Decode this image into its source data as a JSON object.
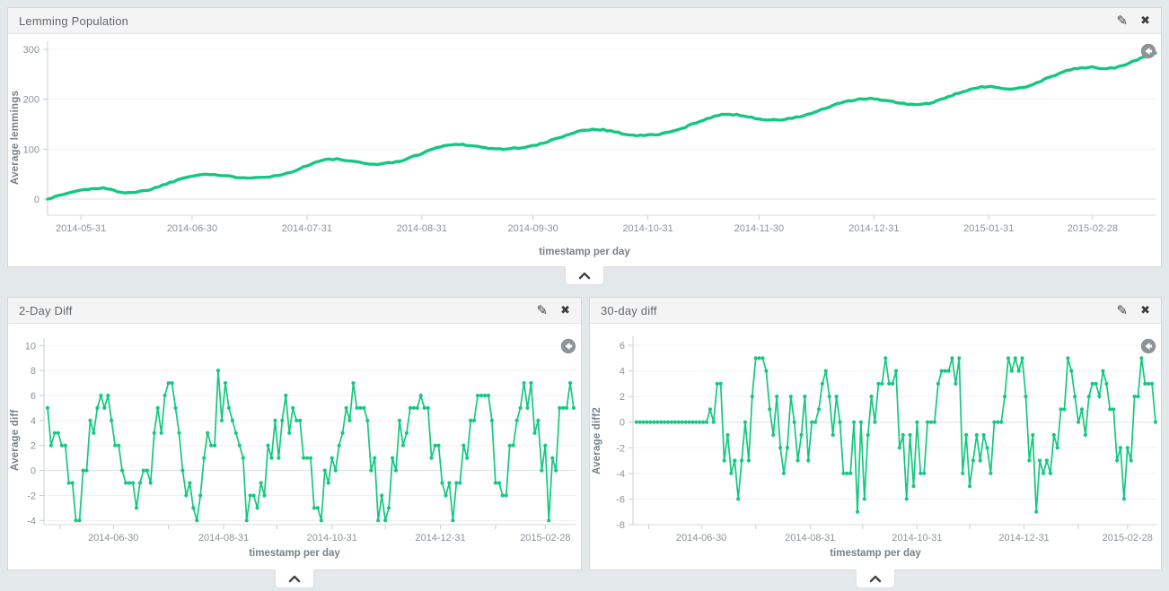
{
  "page": {
    "background": "#e3e8ea",
    "accent_green": "#14c87f",
    "panel_header_bg": "#f4f4f4",
    "axis_text_color": "#8a939c",
    "axis_title_color": "#76828a"
  },
  "icons": {
    "edit_glyph": "✎",
    "close_glyph": "✖",
    "collapse_icon": "chevron-up-icon",
    "reset_icon": "arrow-circle-left-icon"
  },
  "panels": [
    {
      "title": "Lemming Population"
    },
    {
      "title": "2-Day Diff"
    },
    {
      "title": "30-day diff"
    }
  ],
  "chart_data": [
    {
      "type": "line",
      "title": "Lemming Population",
      "xlabel": "timestamp per day",
      "ylabel": "Average lemmings",
      "legend": "none",
      "grid": true,
      "color": "#14c87f",
      "markers": false,
      "ylim": [
        -32,
        330
      ],
      "y_ticks": [
        300,
        200,
        100,
        0
      ],
      "x_start_date": "2014-05-22",
      "x_end_date": "2015-03-17",
      "x_tick_days": [
        9,
        39,
        70,
        101,
        131,
        162,
        192,
        223,
        254,
        282
      ],
      "x_tick_labels": [
        "2014-05-31",
        "2014-06-30",
        "2014-07-31",
        "2014-08-31",
        "2014-09-30",
        "2014-10-31",
        "2014-11-30",
        "2014-12-31",
        "2015-01-31",
        "2015-02-28"
      ],
      "values_at_x_ticks": [
        18,
        47,
        77,
        106,
        139,
        169,
        200,
        222,
        256,
        288
      ],
      "series": [
        {
          "name": "Average lemmings",
          "points_per_day": 1,
          "noise_amplitude": 1.3,
          "keypoints": [
            [
              0,
              0
            ],
            [
              3,
              7
            ],
            [
              6,
              13
            ],
            [
              9,
              18
            ],
            [
              12,
              21
            ],
            [
              15,
              22
            ],
            [
              18,
              17
            ],
            [
              21,
              13
            ],
            [
              24,
              14
            ],
            [
              27,
              18
            ],
            [
              30,
              25
            ],
            [
              33,
              33
            ],
            [
              36,
              41
            ],
            [
              39,
              47
            ],
            [
              42,
              50
            ],
            [
              45,
              49
            ],
            [
              48,
              46
            ],
            [
              51,
              44
            ],
            [
              54,
              43
            ],
            [
              57,
              44
            ],
            [
              60,
              45
            ],
            [
              63,
              48
            ],
            [
              66,
              55
            ],
            [
              69,
              64
            ],
            [
              72,
              73
            ],
            [
              75,
              79
            ],
            [
              78,
              80
            ],
            [
              81,
              77
            ],
            [
              84,
              73
            ],
            [
              87,
              70
            ],
            [
              90,
              71
            ],
            [
              93,
              73
            ],
            [
              96,
              78
            ],
            [
              99,
              86
            ],
            [
              102,
              95
            ],
            [
              105,
              103
            ],
            [
              108,
              108
            ],
            [
              111,
              110
            ],
            [
              114,
              108
            ],
            [
              117,
              104
            ],
            [
              120,
              101
            ],
            [
              123,
              100
            ],
            [
              126,
              102
            ],
            [
              129,
              104
            ],
            [
              132,
              108
            ],
            [
              135,
              115
            ],
            [
              138,
              123
            ],
            [
              141,
              131
            ],
            [
              144,
              137
            ],
            [
              147,
              140
            ],
            [
              150,
              139
            ],
            [
              153,
              135
            ],
            [
              156,
              130
            ],
            [
              159,
              127
            ],
            [
              162,
              128
            ],
            [
              165,
              130
            ],
            [
              168,
              134
            ],
            [
              171,
              141
            ],
            [
              174,
              150
            ],
            [
              177,
              159
            ],
            [
              180,
              166
            ],
            [
              183,
              170
            ],
            [
              186,
              169
            ],
            [
              189,
              165
            ],
            [
              192,
              161
            ],
            [
              195,
              158
            ],
            [
              198,
              159
            ],
            [
              201,
              162
            ],
            [
              204,
              167
            ],
            [
              207,
              174
            ],
            [
              210,
              182
            ],
            [
              213,
              190
            ],
            [
              216,
              196
            ],
            [
              219,
              200
            ],
            [
              222,
              201
            ],
            [
              225,
              199
            ],
            [
              228,
              195
            ],
            [
              231,
              191
            ],
            [
              234,
              189
            ],
            [
              237,
              191
            ],
            [
              240,
              196
            ],
            [
              243,
              204
            ],
            [
              246,
              213
            ],
            [
              249,
              220
            ],
            [
              252,
              224
            ],
            [
              255,
              225
            ],
            [
              258,
              222
            ],
            [
              261,
              221
            ],
            [
              264,
              225
            ],
            [
              267,
              233
            ],
            [
              270,
              243
            ],
            [
              273,
              252
            ],
            [
              276,
              259
            ],
            [
              279,
              263
            ],
            [
              282,
              264
            ],
            [
              285,
              261
            ],
            [
              288,
              263
            ],
            [
              291,
              270
            ],
            [
              294,
              279
            ],
            [
              297,
              287
            ],
            [
              299,
              292
            ]
          ]
        }
      ]
    },
    {
      "type": "line",
      "title": "2-Day Diff",
      "xlabel": "timestamp per day",
      "ylabel": "Average diff",
      "grid": true,
      "color": "#14c87f",
      "markers": true,
      "point_interval_days": 2,
      "ylim": [
        -4.6,
        10.4
      ],
      "y_ticks": [
        10,
        8,
        6,
        4,
        2,
        0,
        -2,
        -4
      ],
      "value_range": [
        -4,
        9
      ],
      "x_tick_days": [
        39,
        101,
        162,
        223,
        282
      ],
      "x_tick_labels": [
        "2014-06-30",
        "2014-08-31",
        "2014-10-31",
        "2014-12-31",
        "2015-02-28"
      ],
      "minor_tick_days": [
        9,
        39,
        70,
        101,
        131,
        162,
        192,
        223,
        254,
        282
      ],
      "derivation": "integer series: value[d] = round(population[d] - population[d-2]); oscillates with ~30-day cycle, clusters of +3..+8 while population climbs and -3..0 while it dips; peak 9, minimum -4"
    },
    {
      "type": "line",
      "title": "30-day diff",
      "xlabel": "timestamp per day",
      "ylabel": "Average diff2",
      "grid": true,
      "color": "#14c87f",
      "markers": true,
      "point_interval_days": 2,
      "ylim": [
        -8.4,
        6.4
      ],
      "y_ticks": [
        6,
        4,
        2,
        0,
        -2,
        -4,
        -6,
        -8
      ],
      "value_range": [
        -7,
        5
      ],
      "flat_zero_until_day": 44,
      "x_tick_days": [
        39,
        101,
        162,
        223,
        282
      ],
      "x_tick_labels": [
        "2014-06-30",
        "2014-08-31",
        "2014-10-31",
        "2014-12-31",
        "2015-02-28"
      ],
      "minor_tick_days": [
        9,
        39,
        70,
        101,
        131,
        162,
        192,
        223,
        254,
        282
      ],
      "derivation": "integer series: value[d] = clamp(diff2day[d] - diff2day[d-30], -7, 5); exactly 0 for the first ~44 days, then noise mostly between -3 and 3 with occasional spikes to 5 and -7"
    }
  ]
}
